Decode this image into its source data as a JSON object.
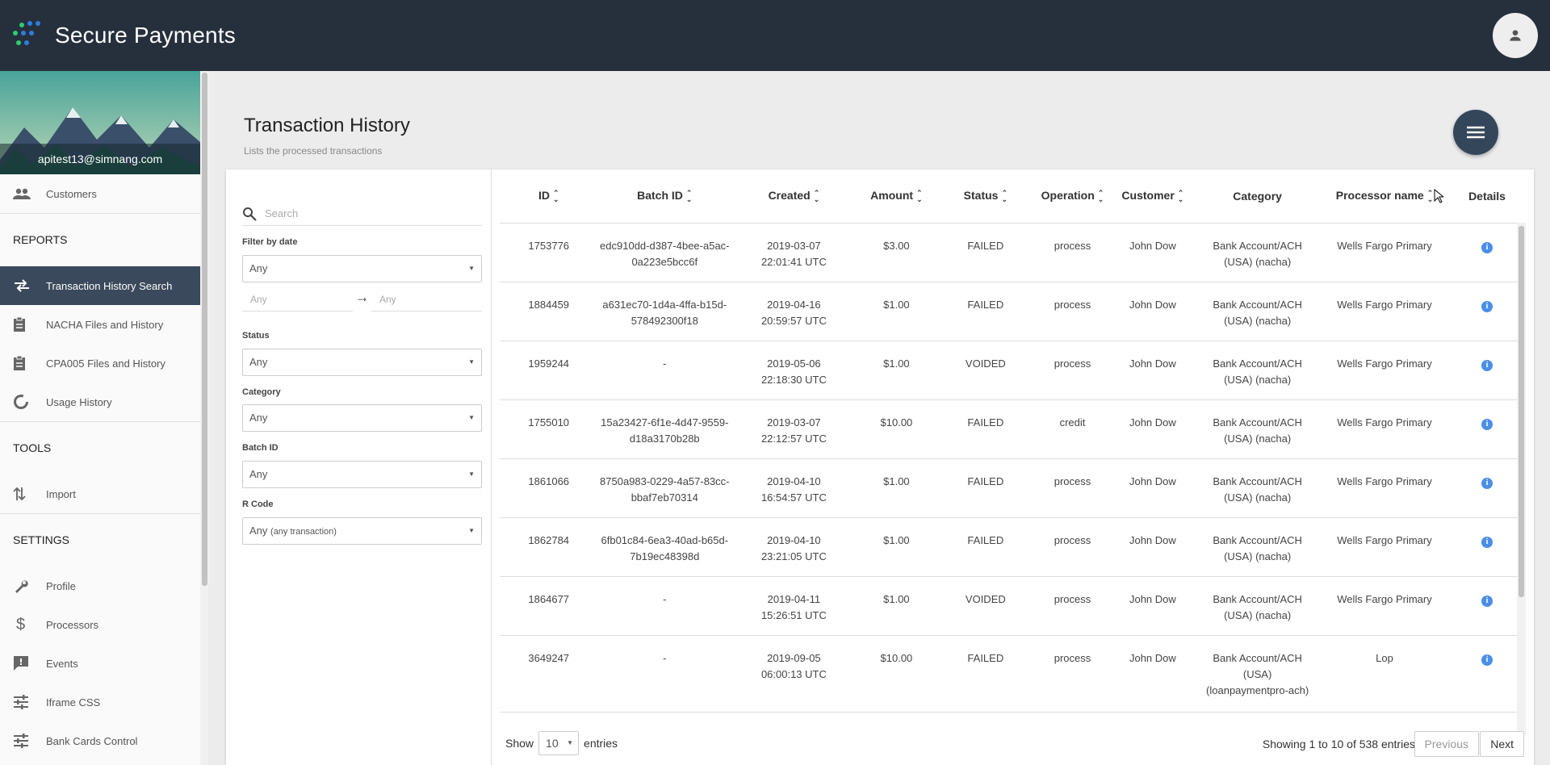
{
  "app": {
    "brand_name": "Secure Payments",
    "colors": {
      "topbar": "#26303d",
      "active_nav": "#3a4a5c",
      "info": "#4a8ee8"
    }
  },
  "sidebar": {
    "user_email": "apitest13@simnang.com",
    "customers_label": "Customers",
    "reports_header": "REPORTS",
    "reports": [
      {
        "label": "Transaction History Search",
        "icon": "swap-arrows-icon"
      },
      {
        "label": "NACHA Files and History",
        "icon": "clipboard-icon"
      },
      {
        "label": "CPA005 Files and History",
        "icon": "clipboard-icon"
      },
      {
        "label": "Usage History",
        "icon": "donut-chart-icon"
      }
    ],
    "tools_header": "TOOLS",
    "tools": [
      {
        "label": "Import",
        "icon": "import-arrows-icon"
      }
    ],
    "settings_header": "SETTINGS",
    "settings": [
      {
        "label": "Profile",
        "icon": "wrench-icon"
      },
      {
        "label": "Processors",
        "icon": "dollar-icon"
      },
      {
        "label": "Events",
        "icon": "feedback-icon"
      },
      {
        "label": "Iframe CSS",
        "icon": "sliders-icon"
      },
      {
        "label": "Bank Cards Control",
        "icon": "sliders-icon"
      }
    ]
  },
  "page": {
    "title": "Transaction History",
    "subtitle": "Lists the processed transactions"
  },
  "filters": {
    "search_placeholder": "Search",
    "date_label": "Filter by date",
    "date_value": "Any",
    "date_from": "Any",
    "date_to": "Any",
    "status_label": "Status",
    "status_value": "Any",
    "category_label": "Category",
    "category_value": "Any",
    "batch_label": "Batch ID",
    "batch_value": "Any",
    "rcode_label": "R Code",
    "rcode_value": "Any",
    "rcode_sub": "(any transaction)"
  },
  "table": {
    "columns": [
      "ID",
      "Batch ID",
      "Created",
      "Amount",
      "Status",
      "Operation",
      "Customer",
      "Category",
      "Processor name",
      "Details"
    ],
    "rows": [
      {
        "id": "1753776",
        "batch1": "edc910dd-d387-4bee-a5ac-",
        "batch2": "0a223e5bcc6f",
        "date": "2019-03-07",
        "time": "22:01:41 UTC",
        "amount": "$3.00",
        "status": "FAILED",
        "operation": "process",
        "customer": "John Dow",
        "cat1": "Bank Account/ACH",
        "cat2": "(USA) (nacha)",
        "cat3": "",
        "processor": "Wells Fargo Primary"
      },
      {
        "id": "1884459",
        "batch1": "a631ec70-1d4a-4ffa-b15d-",
        "batch2": "578492300f18",
        "date": "2019-04-16",
        "time": "20:59:57 UTC",
        "amount": "$1.00",
        "status": "FAILED",
        "operation": "process",
        "customer": "John Dow",
        "cat1": "Bank Account/ACH",
        "cat2": "(USA) (nacha)",
        "cat3": "",
        "processor": "Wells Fargo Primary"
      },
      {
        "id": "1959244",
        "batch1": "-",
        "batch2": "",
        "date": "2019-05-06",
        "time": "22:18:30 UTC",
        "amount": "$1.00",
        "status": "VOIDED",
        "operation": "process",
        "customer": "John Dow",
        "cat1": "Bank Account/ACH",
        "cat2": "(USA) (nacha)",
        "cat3": "",
        "processor": "Wells Fargo Primary"
      },
      {
        "id": "1755010",
        "batch1": "15a23427-6f1e-4d47-9559-",
        "batch2": "d18a3170b28b",
        "date": "2019-03-07",
        "time": "22:12:57 UTC",
        "amount": "$10.00",
        "status": "FAILED",
        "operation": "credit",
        "customer": "John Dow",
        "cat1": "Bank Account/ACH",
        "cat2": "(USA) (nacha)",
        "cat3": "",
        "processor": "Wells Fargo Primary"
      },
      {
        "id": "1861066",
        "batch1": "8750a983-0229-4a57-83cc-",
        "batch2": "bbaf7eb70314",
        "date": "2019-04-10",
        "time": "16:54:57 UTC",
        "amount": "$1.00",
        "status": "FAILED",
        "operation": "process",
        "customer": "John Dow",
        "cat1": "Bank Account/ACH",
        "cat2": "(USA) (nacha)",
        "cat3": "",
        "processor": "Wells Fargo Primary"
      },
      {
        "id": "1862784",
        "batch1": "6fb01c84-6ea3-40ad-b65d-",
        "batch2": "7b19ec48398d",
        "date": "2019-04-10",
        "time": "23:21:05 UTC",
        "amount": "$1.00",
        "status": "FAILED",
        "operation": "process",
        "customer": "John Dow",
        "cat1": "Bank Account/ACH",
        "cat2": "(USA) (nacha)",
        "cat3": "",
        "processor": "Wells Fargo Primary"
      },
      {
        "id": "1864677",
        "batch1": "-",
        "batch2": "",
        "date": "2019-04-11",
        "time": "15:26:51 UTC",
        "amount": "$1.00",
        "status": "VOIDED",
        "operation": "process",
        "customer": "John Dow",
        "cat1": "Bank Account/ACH",
        "cat2": "(USA) (nacha)",
        "cat3": "",
        "processor": "Wells Fargo Primary"
      },
      {
        "id": "3649247",
        "batch1": "-",
        "batch2": "",
        "date": "2019-09-05",
        "time": "06:00:13 UTC",
        "amount": "$10.00",
        "status": "FAILED",
        "operation": "process",
        "customer": "John Dow",
        "cat1": "Bank Account/ACH",
        "cat2": "(USA)",
        "cat3": "(loanpaymentpro-ach)",
        "processor": "Lop"
      }
    ]
  },
  "footer": {
    "show_label": "Show",
    "entries_value": "10",
    "entries_label": "entries",
    "showing_text": "Showing 1 to 10 of 538 entries",
    "prev_label": "Previous",
    "next_label": "Next"
  }
}
